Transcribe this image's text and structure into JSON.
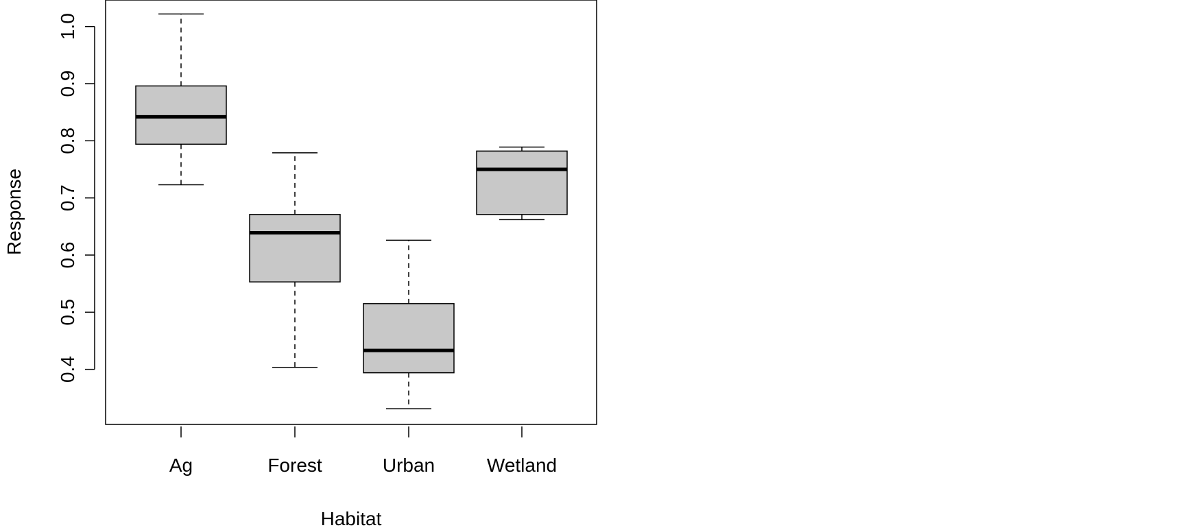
{
  "chart_data": {
    "type": "boxplot",
    "title": "",
    "xlabel": "Habitat",
    "ylabel": "Response",
    "categories": [
      "Ag",
      "Forest",
      "Urban",
      "Wetland"
    ],
    "ylim": [
      0.33,
      1.02
    ],
    "yticks": [
      0.4,
      0.5,
      0.6,
      0.7,
      0.8,
      0.9,
      1.0
    ],
    "ytick_labels": [
      "0.4",
      "0.5",
      "0.6",
      "0.7",
      "0.8",
      "0.9",
      "1.0"
    ],
    "boxes": [
      {
        "category": "Ag",
        "min": 0.723,
        "q1": 0.794,
        "median": 0.842,
        "q3": 0.896,
        "max": 1.022
      },
      {
        "category": "Forest",
        "min": 0.403,
        "q1": 0.553,
        "median": 0.639,
        "q3": 0.671,
        "max": 0.779
      },
      {
        "category": "Urban",
        "min": 0.331,
        "q1": 0.394,
        "median": 0.433,
        "q3": 0.515,
        "max": 0.626
      },
      {
        "category": "Wetland",
        "min": 0.662,
        "q1": 0.671,
        "median": 0.75,
        "q3": 0.782,
        "max": 0.789
      }
    ],
    "colors": {
      "box_fill": "#c8c8c8",
      "stroke": "#000000"
    },
    "grid": false,
    "legend": "none"
  }
}
